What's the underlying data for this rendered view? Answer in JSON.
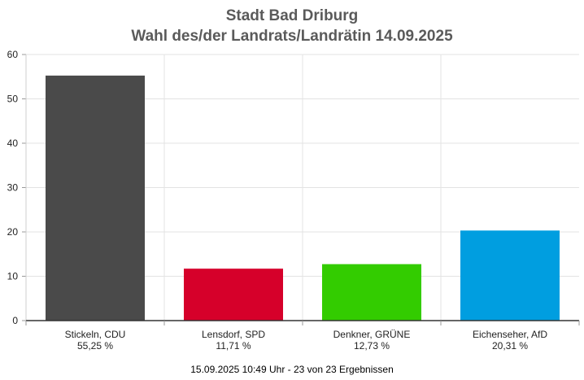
{
  "chart_data": {
    "type": "bar",
    "title": "Stadt Bad Driburg",
    "subtitle": "Wahl des/der Landrats/Landrätin 14.09.2025",
    "categories": [
      "Stickeln, CDU",
      "Lensdorf, SPD",
      "Denkner, GRÜNE",
      "Eichenseher, AfD"
    ],
    "value_labels": [
      "55,25 %",
      "11,71 %",
      "12,73 %",
      "20,31 %"
    ],
    "values": [
      55.25,
      11.71,
      12.73,
      20.31
    ],
    "colors": [
      "#4a4a4a",
      "#d6002a",
      "#33cc00",
      "#009ee0"
    ],
    "ylim": [
      0,
      60
    ],
    "yticks": [
      0,
      10,
      20,
      30,
      40,
      50,
      60
    ],
    "grid": true,
    "footer": "15.09.2025 10:49 Uhr - 23 von 23 Ergebnissen"
  }
}
